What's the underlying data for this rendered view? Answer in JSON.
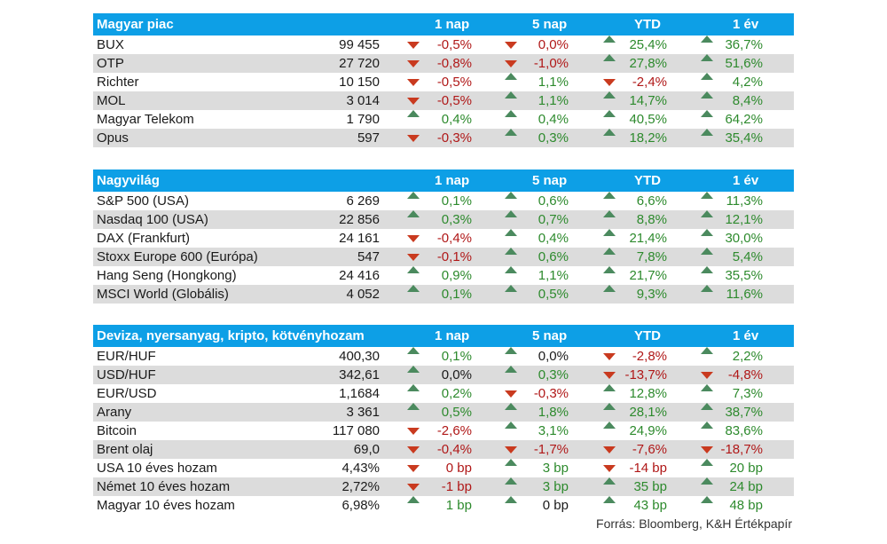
{
  "headers": {
    "c1": "1 nap",
    "c2": "5 nap",
    "c3": "YTD",
    "c4": "1 év"
  },
  "sections": [
    {
      "title": "Magyar piac",
      "rows": [
        {
          "name": "BUX",
          "value": "99 455",
          "c": [
            [
              "-0,5%",
              "down"
            ],
            [
              "0,0%",
              "down"
            ],
            [
              "25,4%",
              "up"
            ],
            [
              "36,7%",
              "up"
            ]
          ]
        },
        {
          "name": "OTP",
          "value": "27 720",
          "c": [
            [
              "-0,8%",
              "down"
            ],
            [
              "-1,0%",
              "down"
            ],
            [
              "27,8%",
              "up"
            ],
            [
              "51,6%",
              "up"
            ]
          ]
        },
        {
          "name": "Richter",
          "value": "10 150",
          "c": [
            [
              "-0,5%",
              "down"
            ],
            [
              "1,1%",
              "up"
            ],
            [
              "-2,4%",
              "down"
            ],
            [
              "4,2%",
              "up"
            ]
          ]
        },
        {
          "name": "MOL",
          "value": "3 014",
          "c": [
            [
              "-0,5%",
              "down"
            ],
            [
              "1,1%",
              "up"
            ],
            [
              "14,7%",
              "up"
            ],
            [
              "8,4%",
              "up"
            ]
          ]
        },
        {
          "name": "Magyar Telekom",
          "value": "1 790",
          "c": [
            [
              "0,4%",
              "up"
            ],
            [
              "0,4%",
              "up"
            ],
            [
              "40,5%",
              "up"
            ],
            [
              "64,2%",
              "up"
            ]
          ]
        },
        {
          "name": "Opus",
          "value": "597",
          "c": [
            [
              "-0,3%",
              "down"
            ],
            [
              "0,3%",
              "up"
            ],
            [
              "18,2%",
              "up"
            ],
            [
              "35,4%",
              "up"
            ]
          ]
        }
      ]
    },
    {
      "title": "Nagyvilág",
      "rows": [
        {
          "name": "S&P 500 (USA)",
          "value": "6 269",
          "c": [
            [
              "0,1%",
              "up"
            ],
            [
              "0,6%",
              "up"
            ],
            [
              "6,6%",
              "up"
            ],
            [
              "11,3%",
              "up"
            ]
          ]
        },
        {
          "name": "Nasdaq 100 (USA)",
          "value": "22 856",
          "c": [
            [
              "0,3%",
              "up"
            ],
            [
              "0,7%",
              "up"
            ],
            [
              "8,8%",
              "up"
            ],
            [
              "12,1%",
              "up"
            ]
          ]
        },
        {
          "name": "DAX (Frankfurt)",
          "value": "24 161",
          "c": [
            [
              "-0,4%",
              "down"
            ],
            [
              "0,4%",
              "up"
            ],
            [
              "21,4%",
              "up"
            ],
            [
              "30,0%",
              "up"
            ]
          ]
        },
        {
          "name": "Stoxx Europe 600 (Európa)",
          "value": "547",
          "c": [
            [
              "-0,1%",
              "down"
            ],
            [
              "0,6%",
              "up"
            ],
            [
              "7,8%",
              "up"
            ],
            [
              "5,4%",
              "up"
            ]
          ]
        },
        {
          "name": "Hang Seng (Hongkong)",
          "value": "24 416",
          "c": [
            [
              "0,9%",
              "up"
            ],
            [
              "1,1%",
              "up"
            ],
            [
              "21,7%",
              "up"
            ],
            [
              "35,5%",
              "up"
            ]
          ]
        },
        {
          "name": "MSCI World (Globális)",
          "value": "4 052",
          "c": [
            [
              "0,1%",
              "up"
            ],
            [
              "0,5%",
              "up"
            ],
            [
              "9,3%",
              "up"
            ],
            [
              "11,6%",
              "up"
            ]
          ]
        }
      ]
    },
    {
      "title": "Deviza, nyersanyag, kripto, kötvényhozam",
      "rows": [
        {
          "name": "EUR/HUF",
          "value": "400,30",
          "c": [
            [
              "0,1%",
              "up"
            ],
            [
              "0,0%",
              "up",
              "neu"
            ],
            [
              "-2,8%",
              "down"
            ],
            [
              "2,2%",
              "up"
            ]
          ]
        },
        {
          "name": "USD/HUF",
          "value": "342,61",
          "c": [
            [
              "0,0%",
              "up",
              "neu"
            ],
            [
              "0,3%",
              "up"
            ],
            [
              "-13,7%",
              "down"
            ],
            [
              "-4,8%",
              "down"
            ]
          ]
        },
        {
          "name": "EUR/USD",
          "value": "1,1684",
          "c": [
            [
              "0,2%",
              "up"
            ],
            [
              "-0,3%",
              "down"
            ],
            [
              "12,8%",
              "up"
            ],
            [
              "7,3%",
              "up"
            ]
          ]
        },
        {
          "name": "Arany",
          "value": "3 361",
          "c": [
            [
              "0,5%",
              "up"
            ],
            [
              "1,8%",
              "up"
            ],
            [
              "28,1%",
              "up"
            ],
            [
              "38,7%",
              "up"
            ]
          ]
        },
        {
          "name": "Bitcoin",
          "value": "117 080",
          "c": [
            [
              "-2,6%",
              "down"
            ],
            [
              "3,1%",
              "up"
            ],
            [
              "24,9%",
              "up"
            ],
            [
              "83,6%",
              "up"
            ]
          ]
        },
        {
          "name": "Brent olaj",
          "value": "69,0",
          "c": [
            [
              "-0,4%",
              "down"
            ],
            [
              "-1,7%",
              "down"
            ],
            [
              "-7,6%",
              "down"
            ],
            [
              "-18,7%",
              "down"
            ]
          ]
        },
        {
          "name": "USA 10 éves hozam",
          "value": "4,43%",
          "c": [
            [
              "0 bp",
              "down",
              "neg"
            ],
            [
              "3 bp",
              "up"
            ],
            [
              "-14 bp",
              "down"
            ],
            [
              "20 bp",
              "up"
            ]
          ]
        },
        {
          "name": "Német 10 éves hozam",
          "value": "2,72%",
          "c": [
            [
              "-1 bp",
              "down"
            ],
            [
              "3 bp",
              "up"
            ],
            [
              "35 bp",
              "up"
            ],
            [
              "24 bp",
              "up"
            ]
          ]
        },
        {
          "name": "Magyar 10 éves hozam",
          "value": "6,98%",
          "c": [
            [
              "1 bp",
              "up"
            ],
            [
              "0 bp",
              "up",
              "neu"
            ],
            [
              "43 bp",
              "up"
            ],
            [
              "48 bp",
              "up"
            ]
          ]
        }
      ]
    }
  ],
  "source": "Forrás: Bloomberg, K&H Értékpapír"
}
